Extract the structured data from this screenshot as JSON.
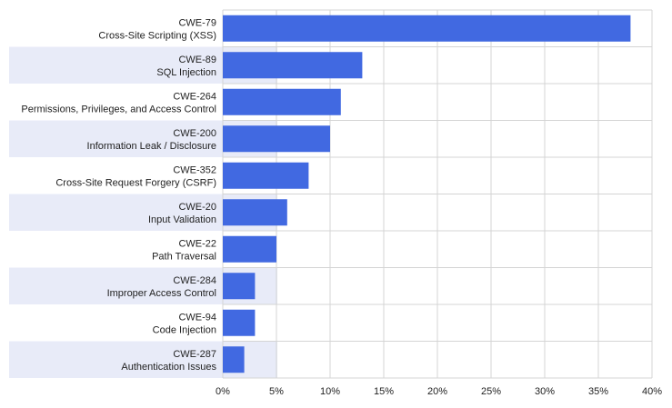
{
  "chart_data": {
    "type": "bar",
    "orientation": "horizontal",
    "categories": [
      [
        "CWE-79",
        "Cross-Site Scripting (XSS)"
      ],
      [
        "CWE-89",
        "SQL Injection"
      ],
      [
        "CWE-264",
        "Permissions, Privileges, and Access Control"
      ],
      [
        "CWE-200",
        "Information Leak / Disclosure"
      ],
      [
        "CWE-352",
        "Cross-Site Request Forgery (CSRF)"
      ],
      [
        "CWE-20",
        "Input Validation"
      ],
      [
        "CWE-22",
        "Path Traversal"
      ],
      [
        "CWE-284",
        "Improper Access Control"
      ],
      [
        "CWE-94",
        "Code Injection"
      ],
      [
        "CWE-287",
        "Authentication Issues"
      ]
    ],
    "values": [
      38,
      13,
      11,
      10,
      8,
      6,
      5,
      3,
      3,
      2
    ],
    "x_ticks": [
      "0%",
      "5%",
      "10%",
      "15%",
      "20%",
      "25%",
      "30%",
      "35%",
      "40%"
    ],
    "xlim": [
      0,
      40
    ],
    "title": "",
    "xlabel": "",
    "ylabel": "",
    "grid": true,
    "legend": "none",
    "colors": {
      "bar": "#4169e1",
      "band": "#e8ebf8",
      "grid": "#d4d4d4",
      "text": "#222222"
    }
  }
}
